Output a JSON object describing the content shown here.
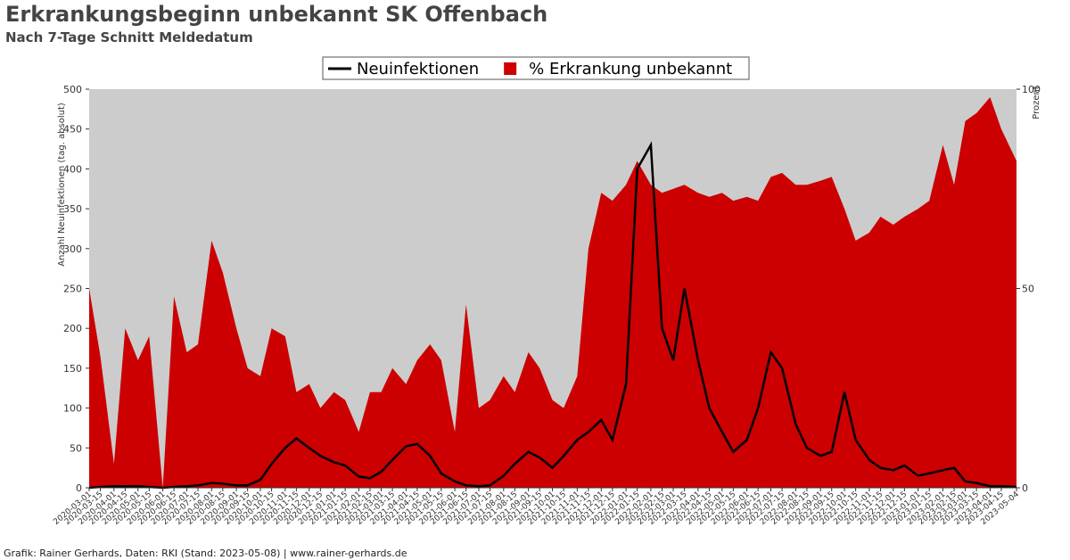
{
  "chart_data": {
    "type": "line",
    "title": "Erkrankungsbeginn unbekannt SK Offenbach",
    "subtitle": "Nach 7-Tage Schnitt Meldedatum",
    "ylabel": "Anzahl Neuinfektionen (tag. absolut)",
    "y2label": "Prozent",
    "footer": "Grafik: Rainer Gerhards, Daten: RKI (Stand: 2023-05-08) | www.rainer-gerhards.de",
    "legend": "top",
    "x": [
      "2020-03-01",
      "2020-03-15",
      "2020-04-01",
      "2020-04-15",
      "2020-05-01",
      "2020-05-15",
      "2020-06-01",
      "2020-06-15",
      "2020-07-01",
      "2020-07-15",
      "2020-08-01",
      "2020-08-15",
      "2020-09-01",
      "2020-09-15",
      "2020-10-01",
      "2020-10-15",
      "2020-11-01",
      "2020-11-15",
      "2020-12-01",
      "2020-12-15",
      "2021-01-01",
      "2021-01-15",
      "2021-02-01",
      "2021-02-15",
      "2021-03-01",
      "2021-03-15",
      "2021-04-01",
      "2021-04-15",
      "2021-05-01",
      "2021-05-15",
      "2021-06-01",
      "2021-06-15",
      "2021-07-01",
      "2021-07-15",
      "2021-08-01",
      "2021-08-15",
      "2021-09-01",
      "2021-09-15",
      "2021-10-01",
      "2021-10-15",
      "2021-11-01",
      "2021-11-15",
      "2021-12-01",
      "2021-12-15",
      "2022-01-01",
      "2022-01-15",
      "2022-02-01",
      "2022-02-15",
      "2022-03-01",
      "2022-03-15",
      "2022-04-01",
      "2022-04-15",
      "2022-05-01",
      "2022-05-15",
      "2022-06-01",
      "2022-06-15",
      "2022-07-01",
      "2022-07-15",
      "2022-08-01",
      "2022-08-15",
      "2022-09-01",
      "2022-09-15",
      "2022-10-01",
      "2022-10-15",
      "2022-11-01",
      "2022-11-15",
      "2022-12-01",
      "2022-12-15",
      "2023-01-01",
      "2023-01-15",
      "2023-02-01",
      "2023-02-15",
      "2023-03-01",
      "2023-03-15",
      "2023-04-01",
      "2023-04-15",
      "2023-05-04"
    ],
    "series": [
      {
        "name": "% Erkrankung unbekannt",
        "color": "#cc0000",
        "axis": "y2",
        "kind": "area",
        "values": [
          50,
          33,
          6,
          40,
          32,
          38,
          0,
          48,
          34,
          36,
          62,
          54,
          40,
          30,
          28,
          40,
          38,
          24,
          26,
          20,
          24,
          22,
          14,
          24,
          24,
          30,
          26,
          32,
          36,
          32,
          14,
          46,
          20,
          22,
          28,
          24,
          34,
          30,
          22,
          20,
          28,
          60,
          74,
          72,
          76,
          82,
          76,
          74,
          75,
          76,
          74,
          73,
          74,
          72,
          73,
          72,
          78,
          79,
          76,
          76,
          77,
          78,
          70,
          62,
          64,
          68,
          66,
          68,
          70,
          72,
          86,
          76,
          92,
          94,
          98,
          90,
          82
        ]
      },
      {
        "name": "Neuinfektionen",
        "color": "#000000",
        "values": [
          0,
          1,
          2,
          2,
          2,
          1,
          0,
          1,
          2,
          3,
          6,
          5,
          3,
          3,
          10,
          30,
          50,
          62,
          50,
          40,
          32,
          28,
          14,
          12,
          20,
          35,
          52,
          55,
          40,
          18,
          8,
          3,
          2,
          3,
          15,
          30,
          45,
          38,
          25,
          40,
          60,
          70,
          85,
          60,
          130,
          400,
          430,
          200,
          160,
          250,
          160,
          100,
          70,
          45,
          60,
          100,
          170,
          150,
          80,
          50,
          40,
          45,
          120,
          60,
          35,
          25,
          22,
          28,
          15,
          18,
          22,
          25,
          8,
          6,
          2,
          2,
          1
        ]
      }
    ],
    "ylim": [
      0,
      500
    ],
    "yticks": [
      0,
      50,
      100,
      150,
      200,
      250,
      300,
      350,
      400,
      450,
      500
    ],
    "y2lim": [
      0,
      100
    ],
    "y2ticks": [
      0,
      50,
      100
    ],
    "plot_background": "#cccccc"
  }
}
